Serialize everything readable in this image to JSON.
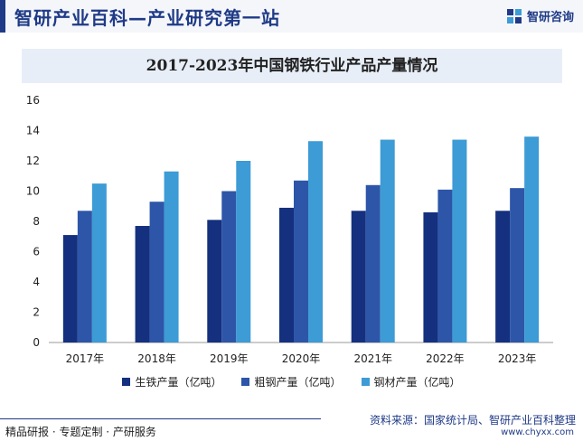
{
  "header": {
    "title": "智研产业百科—产业研究第一站",
    "brand": "智研咨询"
  },
  "chart_data": {
    "type": "bar",
    "title": "2017-2023年中国钢铁行业产品产量情况",
    "categories": [
      "2017年",
      "2018年",
      "2019年",
      "2020年",
      "2021年",
      "2022年",
      "2023年"
    ],
    "series": [
      {
        "name": "生铁产量（亿吨）",
        "color": "#14307e",
        "values": [
          7.1,
          7.7,
          8.1,
          8.9,
          8.7,
          8.6,
          8.7
        ]
      },
      {
        "name": "粗钢产量（亿吨）",
        "color": "#2d56a8",
        "values": [
          8.7,
          9.3,
          10.0,
          10.7,
          10.4,
          10.1,
          10.2
        ]
      },
      {
        "name": "钢材产量（亿吨）",
        "color": "#3d9bd6",
        "values": [
          10.5,
          11.3,
          12.0,
          13.3,
          13.4,
          13.4,
          13.6
        ]
      }
    ],
    "ylim": [
      0,
      16
    ],
    "yticks": [
      0,
      2,
      4,
      6,
      8,
      10,
      12,
      14,
      16
    ],
    "grid": false,
    "legend": "bottom"
  },
  "footer": {
    "left": "精品研报 · 专题定制 · 产研服务",
    "source": "资料来源：国家统计局、智研产业百科整理",
    "url": "www.chyxx.com"
  }
}
